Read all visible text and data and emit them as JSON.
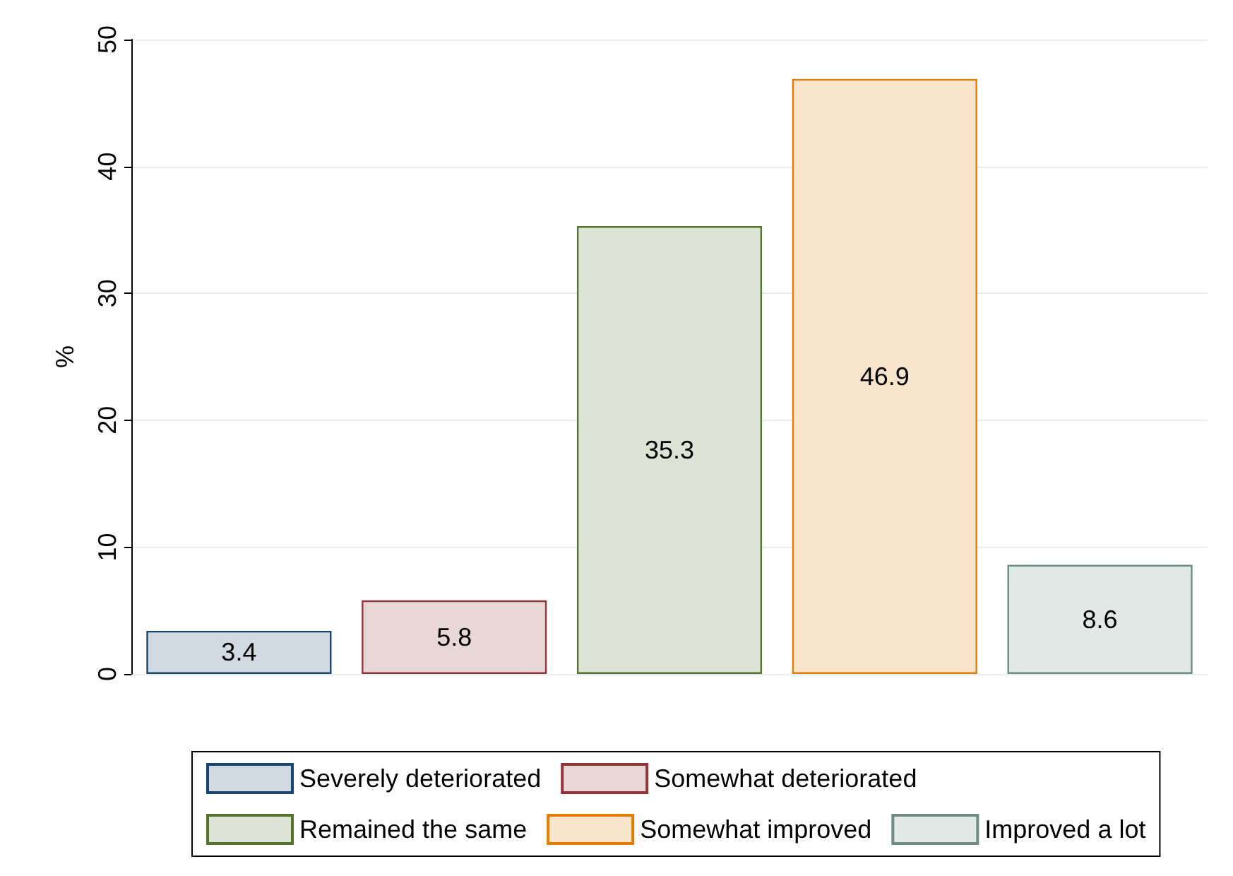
{
  "chart_data": {
    "type": "bar",
    "ylabel": "%",
    "categories": [
      null,
      null,
      null,
      null,
      null
    ],
    "series": [
      {
        "name": "Severely deteriorated",
        "color": "#d1dae2",
        "values": [
          3.4,
          null,
          null,
          null,
          null
        ]
      },
      {
        "name": "Somewhat deteriorated",
        "color": "#e9d7d8",
        "values": [
          null,
          5.8,
          null,
          null,
          null
        ]
      },
      {
        "name": "Remained the same",
        "color": "#dde3d5",
        "values": [
          null,
          null,
          35.3,
          null,
          null
        ]
      },
      {
        "name": "Somewhat improved",
        "color": "#f9e5cc",
        "values": [
          null,
          null,
          null,
          46.9,
          null
        ]
      },
      {
        "name": "Improved a lot",
        "color": "#e2e8e6",
        "values": [
          null,
          null,
          null,
          null,
          8.6
        ]
      }
    ],
    "ylim": [
      0,
      50
    ],
    "yticks": [
      0,
      10,
      20,
      30,
      40,
      50
    ],
    "grid": "y",
    "legend": "bottom",
    "data_labels": true
  }
}
